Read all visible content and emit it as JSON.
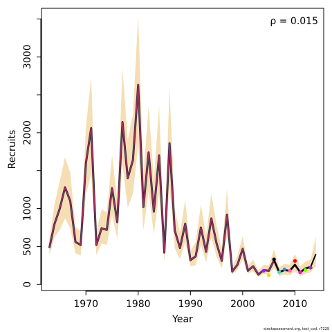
{
  "chart_data": {
    "type": "line",
    "annotation": "ρ = 0.015",
    "credit": "stockassessment.org, test_cod, r7229",
    "xlabel": "Year",
    "ylabel": "Recruits",
    "xlim": [
      1961.5,
      2015.5
    ],
    "ylim": [
      -80,
      3640
    ],
    "x_ticks": [
      1970,
      1980,
      1990,
      2000,
      2010
    ],
    "y_ticks": [
      0,
      500,
      1000,
      2000,
      3000
    ],
    "y_minor_ticks": [
      1500,
      2500,
      3500
    ],
    "grid": false,
    "colors": {
      "band": "#f5deb3",
      "main_line": "#000000",
      "retro_line": "#b03060"
    },
    "series": [
      {
        "x": [
          1963,
          1964,
          1965,
          1966,
          1967,
          1968,
          1969,
          1970,
          1971,
          1972,
          1973,
          1974,
          1975,
          1976,
          1977,
          1978,
          1979,
          1980,
          1981,
          1982,
          1983,
          1984,
          1985,
          1986,
          1987,
          1988,
          1989,
          1990,
          1991,
          1992,
          1993,
          1994,
          1995,
          1996,
          1997,
          1998,
          1999,
          2000,
          2001,
          2002,
          2003,
          2004,
          2005,
          2006,
          2007,
          2008,
          2009,
          2010,
          2011,
          2012,
          2013,
          2014
        ],
        "estimate": [
          480,
          800,
          1000,
          1280,
          1100,
          560,
          520,
          1600,
          2060,
          520,
          740,
          720,
          1270,
          820,
          2140,
          1400,
          1640,
          2630,
          1020,
          1740,
          960,
          1700,
          420,
          1860,
          710,
          480,
          800,
          320,
          370,
          750,
          430,
          870,
          540,
          310,
          920,
          170,
          260,
          470,
          180,
          240,
          130,
          190,
          180,
          320,
          160,
          190,
          180,
          260,
          160,
          210,
          230,
          400
        ],
        "lower": [
          380,
          620,
          720,
          870,
          740,
          410,
          380,
          1180,
          1450,
          390,
          540,
          520,
          920,
          600,
          1580,
          1010,
          1200,
          1840,
          720,
          1230,
          660,
          1200,
          300,
          1300,
          480,
          330,
          560,
          240,
          250,
          520,
          290,
          620,
          370,
          210,
          640,
          130,
          190,
          330,
          140,
          170,
          95,
          140,
          130,
          220,
          110,
          130,
          120,
          170,
          110,
          140,
          160,
          240
        ],
        "upper": [
          600,
          1060,
          1360,
          1680,
          1470,
          760,
          700,
          2070,
          2730,
          700,
          990,
          950,
          1700,
          1110,
          2840,
          1910,
          2240,
          3540,
          1450,
          2350,
          1380,
          2350,
          600,
          2590,
          1000,
          680,
          1110,
          440,
          560,
          1050,
          640,
          1200,
          780,
          460,
          1260,
          230,
          380,
          640,
          240,
          330,
          180,
          260,
          250,
          460,
          230,
          270,
          260,
          400,
          240,
          300,
          330,
          630
        ]
      }
    ],
    "retro_points": [
      {
        "x": 2004,
        "y": 180,
        "color": "#a020f0"
      },
      {
        "x": 2005,
        "y": 120,
        "color": "#ffd700"
      },
      {
        "x": 2006,
        "y": 330,
        "color": "#000000"
      },
      {
        "x": 2007,
        "y": 160,
        "color": "#40e0d0"
      },
      {
        "x": 2008,
        "y": 200,
        "color": "#1e90ff"
      },
      {
        "x": 2009,
        "y": 180,
        "color": "#ff69b4"
      },
      {
        "x": 2010,
        "y": 310,
        "color": "#ff0000"
      },
      {
        "x": 2011,
        "y": 160,
        "color": "#ff00ff"
      },
      {
        "x": 2012,
        "y": 190,
        "color": "#7cfc00"
      },
      {
        "x": 2013,
        "y": 220,
        "color": "#9932cc"
      }
    ]
  }
}
